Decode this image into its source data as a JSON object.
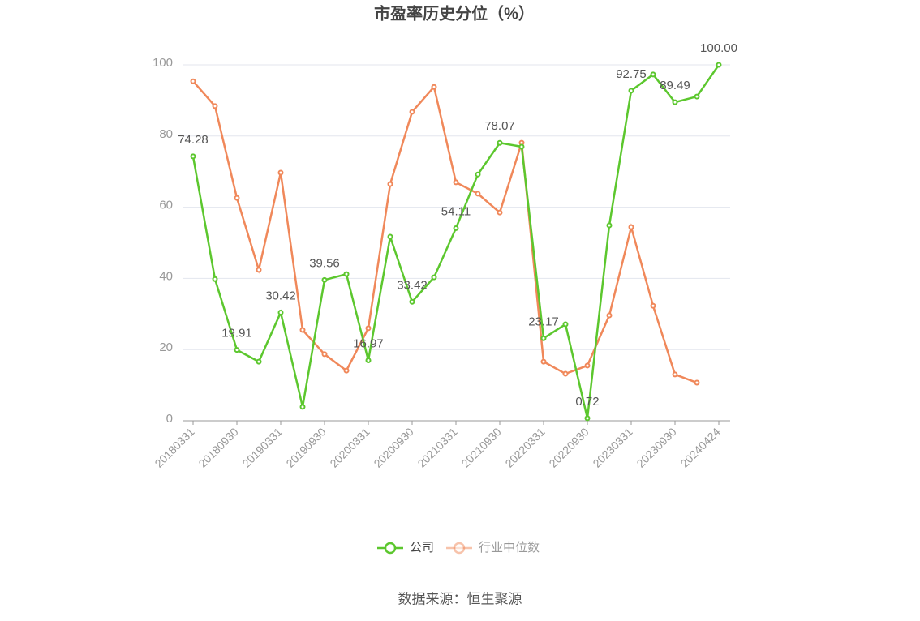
{
  "chart_data": {
    "type": "line",
    "title": "市盈率历史分位（%）",
    "source": "数据来源：恒生聚源",
    "categories": [
      "20180331",
      null,
      "20180930",
      null,
      "20190331",
      null,
      "20190930",
      null,
      "20200331",
      null,
      "20200930",
      null,
      "20210331",
      null,
      "20210930",
      null,
      "20220331",
      null,
      "20220930",
      null,
      "20230331",
      null,
      "20230930",
      null,
      "20240424"
    ],
    "series": [
      {
        "name": "公司",
        "color": "#5cc72e",
        "values": [
          74.28,
          39.8,
          19.91,
          16.6,
          30.42,
          3.9,
          39.56,
          41.2,
          16.97,
          51.7,
          33.42,
          40.3,
          54.11,
          69.2,
          78.07,
          77.0,
          23.17,
          27.1,
          0.72,
          54.9,
          92.75,
          97.3,
          89.49,
          91.1,
          100
        ],
        "value_labels": [
          "74.28",
          null,
          "19.91",
          null,
          "30.42",
          null,
          "39.56",
          null,
          "16.97",
          null,
          "33.42",
          null,
          "54.11",
          null,
          "78.07",
          null,
          "23.17",
          null,
          "0.72",
          null,
          "92.75",
          null,
          "89.49",
          null,
          "100.00"
        ]
      },
      {
        "name": "行业中位数",
        "color": "#f0885a",
        "values": [
          95.4,
          88.4,
          62.6,
          42.4,
          69.7,
          25.5,
          18.7,
          14.1,
          26.0,
          66.5,
          86.8,
          93.8,
          67.0,
          63.8,
          58.5,
          78.1,
          16.6,
          13.2,
          15.5,
          29.6,
          54.4,
          32.3,
          13.0,
          10.7,
          null
        ]
      }
    ],
    "ylim": [
      0,
      100
    ],
    "yticks": [
      0,
      20,
      40,
      60,
      80,
      100
    ],
    "grid": true
  }
}
